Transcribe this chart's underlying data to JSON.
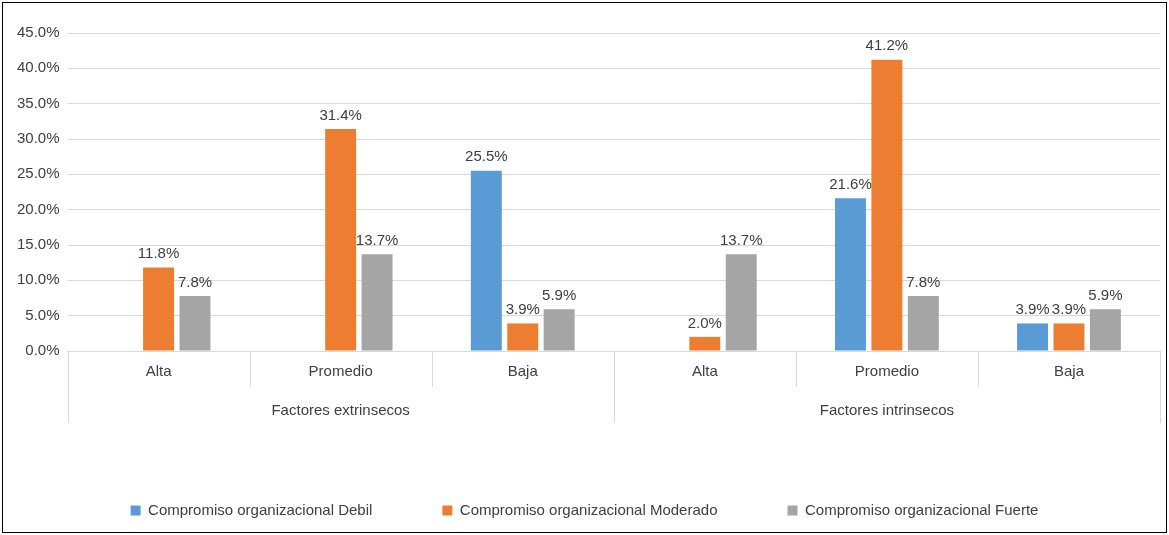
{
  "chart_data": {
    "type": "bar",
    "categories": [
      "Alta",
      "Promedio",
      "Baja",
      "Alta",
      "Promedio",
      "Baja"
    ],
    "series": [
      {
        "name": "Compromiso organizacional Debil",
        "color": "#5b9bd5",
        "values": [
          null,
          null,
          25.5,
          null,
          21.6,
          3.9
        ],
        "value_labels": [
          null,
          null,
          "25.5%",
          null,
          "21.6%",
          "3.9%"
        ]
      },
      {
        "name": "Compromiso organizacional Moderado",
        "color": "#ed7d31",
        "values": [
          11.8,
          31.4,
          3.9,
          2.0,
          41.2,
          3.9
        ],
        "value_labels": [
          "11.8%",
          "31.4%",
          "3.9%",
          "2.0%",
          "41.2%",
          "3.9%"
        ]
      },
      {
        "name": "Compromiso organizacional Fuerte",
        "color": "#a5a5a5",
        "values": [
          7.8,
          13.7,
          5.9,
          13.7,
          7.8,
          5.9
        ],
        "value_labels": [
          "7.8%",
          "13.7%",
          "5.9%",
          "13.7%",
          "7.8%",
          "5.9%"
        ]
      }
    ],
    "annotations": [
      "Factores extrinsecos",
      "Factores intrinsecos"
    ],
    "ylim": [
      0,
      45
    ],
    "yticks": [
      {
        "value": 0,
        "label": "0.0%"
      },
      {
        "value": 5,
        "label": "5.0%"
      },
      {
        "value": 10,
        "label": "10.0%"
      },
      {
        "value": 15,
        "label": "15.0%"
      },
      {
        "value": 20,
        "label": "20.0%"
      },
      {
        "value": 25,
        "label": "25.0%"
      },
      {
        "value": 30,
        "label": "30.0%"
      },
      {
        "value": 35,
        "label": "35.0%"
      },
      {
        "value": 40,
        "label": "40.0%"
      },
      {
        "value": 45,
        "label": "45.0%"
      }
    ],
    "grid": "y",
    "legend": "bottom"
  }
}
